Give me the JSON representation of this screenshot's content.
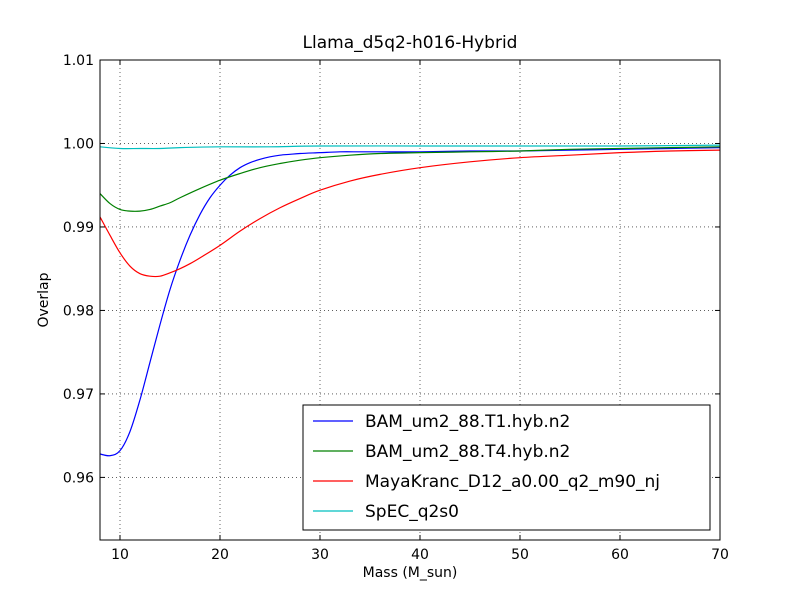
{
  "chart_data": {
    "type": "line",
    "title": "Llama_d5q2-h016-Hybrid",
    "xlabel": "Mass (M_sun)",
    "ylabel": "Overlap",
    "xlim": [
      8,
      70
    ],
    "ylim": [
      0.9525,
      1.01
    ],
    "xticks": [
      10,
      20,
      30,
      40,
      50,
      60,
      70
    ],
    "yticks": [
      0.96,
      0.97,
      0.98,
      0.99,
      1.0,
      1.01
    ],
    "ytick_labels": [
      "0.96",
      "0.97",
      "0.98",
      "0.99",
      "1.00",
      "1.01"
    ],
    "grid": true,
    "legend_position": "lower-right",
    "series": [
      {
        "name": "BAM_um2_88.T1.hyb.n2",
        "color": "#0000ff",
        "x": [
          8,
          9,
          10,
          11,
          12,
          13,
          14,
          15,
          16,
          17,
          18,
          19,
          20,
          21,
          22,
          23,
          24,
          25,
          26,
          27,
          28,
          30,
          32,
          34,
          36,
          40,
          45,
          50,
          55,
          60,
          65,
          70
        ],
        "y": [
          0.9628,
          0.9626,
          0.9632,
          0.9655,
          0.9693,
          0.9738,
          0.9783,
          0.9825,
          0.986,
          0.989,
          0.9915,
          0.9935,
          0.995,
          0.9962,
          0.9971,
          0.9977,
          0.9981,
          0.9984,
          0.9986,
          0.9987,
          0.9988,
          0.9989,
          0.999,
          0.999,
          0.999,
          0.999,
          0.9991,
          0.9991,
          0.9992,
          0.9993,
          0.9994,
          0.9995
        ]
      },
      {
        "name": "BAM_um2_88.T4.hyb.n2",
        "color": "#008000",
        "x": [
          8,
          9,
          10,
          11,
          12,
          13,
          14,
          15,
          16,
          18,
          20,
          22,
          24,
          26,
          28,
          30,
          33,
          36,
          40,
          45,
          50,
          55,
          60,
          65,
          70
        ],
        "y": [
          0.994,
          0.9928,
          0.9921,
          0.9919,
          0.9919,
          0.9921,
          0.9925,
          0.9929,
          0.9935,
          0.9946,
          0.9956,
          0.9964,
          0.9971,
          0.9976,
          0.998,
          0.9983,
          0.9986,
          0.9988,
          0.9989,
          0.999,
          0.9991,
          0.9993,
          0.9994,
          0.9995,
          0.9996
        ]
      },
      {
        "name": "MayaKranc_D12_a0.00_q2_m90_nj",
        "color": "#ff0000",
        "x": [
          8,
          9,
          10,
          11,
          12,
          13,
          14,
          15,
          16,
          17,
          18,
          20,
          22,
          24,
          26,
          28,
          30,
          33,
          36,
          40,
          45,
          50,
          55,
          60,
          65,
          70
        ],
        "y": [
          0.9912,
          0.989,
          0.9869,
          0.9853,
          0.9844,
          0.9841,
          0.9841,
          0.9845,
          0.985,
          0.9856,
          0.9863,
          0.9878,
          0.9895,
          0.991,
          0.9923,
          0.9934,
          0.9944,
          0.9955,
          0.9963,
          0.9971,
          0.9978,
          0.9983,
          0.9986,
          0.9989,
          0.9991,
          0.9992
        ]
      },
      {
        "name": "SpEC_q2s0",
        "color": "#00bfbf",
        "x": [
          8,
          10,
          12,
          14,
          16,
          20,
          25,
          30,
          40,
          50,
          60,
          70
        ],
        "y": [
          0.9996,
          0.9994,
          0.9994,
          0.9994,
          0.9995,
          0.9996,
          0.9996,
          0.9997,
          0.9997,
          0.9997,
          0.9997,
          0.9998
        ]
      }
    ]
  }
}
